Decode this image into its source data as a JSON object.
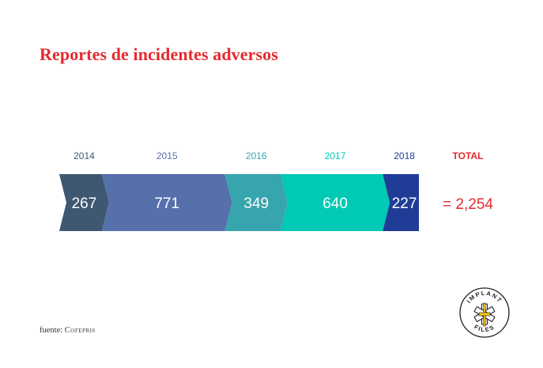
{
  "title": "Reportes de incidentes adversos",
  "chart_data": {
    "type": "bar",
    "categories": [
      "2014",
      "2015",
      "2016",
      "2017",
      "2018"
    ],
    "values": [
      267,
      771,
      349,
      640,
      227
    ],
    "value_labels": [
      "267",
      "771",
      "349",
      "640",
      "227"
    ],
    "colors": [
      "#3f5872",
      "#5670ac",
      "#37a5ad",
      "#00c9b4",
      "#1f3d97"
    ],
    "label_colors": [
      "#3f5872",
      "#5670ac",
      "#37a5ad",
      "#00c9b4",
      "#1f3d97"
    ],
    "total_header": "TOTAL",
    "total_value": "= 2,254",
    "total_color": "#e42a2f"
  },
  "source": {
    "prefix": "fuente:",
    "org": "Cofepris"
  },
  "logo": {
    "top_text": "IMPLANT",
    "bottom_text": "FILES",
    "icon": "star-of-life-logo-icon"
  }
}
